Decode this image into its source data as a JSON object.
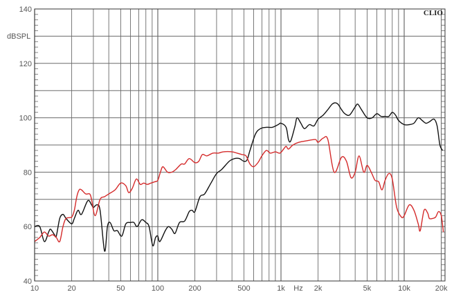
{
  "chart_data": {
    "type": "line",
    "title": "",
    "ylabel": "dBSPL",
    "xlabel": "Hz",
    "brand": "CLIO",
    "x_scale": "log",
    "xlim": [
      10,
      20000
    ],
    "ylim": [
      40,
      140
    ],
    "grid": true,
    "x_ticks": [
      {
        "v": 10,
        "label": "10"
      },
      {
        "v": 20,
        "label": "20"
      },
      {
        "v": 50,
        "label": "50"
      },
      {
        "v": 100,
        "label": "100"
      },
      {
        "v": 200,
        "label": "200"
      },
      {
        "v": 500,
        "label": "500"
      },
      {
        "v": 1000,
        "label": "1k"
      },
      {
        "v": 2000,
        "label": "2k"
      },
      {
        "v": 5000,
        "label": "5k"
      },
      {
        "v": 10000,
        "label": "10k"
      },
      {
        "v": 20000,
        "label": "20k"
      }
    ],
    "y_ticks": [
      40,
      60,
      80,
      100,
      120,
      140
    ],
    "colors": {
      "black_series": "#111111",
      "red_series": "#d42a2a",
      "grid": "#6a6a6a"
    },
    "series": [
      {
        "color": "#111111",
        "points": [
          [
            10,
            60
          ],
          [
            11,
            60
          ],
          [
            12,
            54.5
          ],
          [
            13,
            58
          ],
          [
            13.5,
            59
          ],
          [
            14.5,
            57
          ],
          [
            15,
            56.5
          ],
          [
            16,
            63
          ],
          [
            17,
            64.5
          ],
          [
            18,
            63
          ],
          [
            20,
            61
          ],
          [
            21,
            63
          ],
          [
            22.5,
            66
          ],
          [
            24,
            64.5
          ],
          [
            27,
            69.5
          ],
          [
            29,
            68
          ],
          [
            30,
            67
          ],
          [
            32,
            68
          ],
          [
            34,
            66
          ],
          [
            37,
            51
          ],
          [
            39,
            60
          ],
          [
            41,
            61.5
          ],
          [
            44,
            58.5
          ],
          [
            47,
            58.5
          ],
          [
            51,
            56.5
          ],
          [
            55,
            61
          ],
          [
            60,
            61.5
          ],
          [
            64,
            61.5
          ],
          [
            68,
            60
          ],
          [
            74,
            62.5
          ],
          [
            80,
            61.5
          ],
          [
            85,
            60
          ],
          [
            91,
            53
          ],
          [
            96,
            56
          ],
          [
            100,
            56.5
          ],
          [
            104,
            54.5
          ],
          [
            115,
            58.5
          ],
          [
            122,
            60
          ],
          [
            130,
            59
          ],
          [
            138,
            57.5
          ],
          [
            150,
            61.5
          ],
          [
            165,
            62
          ],
          [
            180,
            65.5
          ],
          [
            190,
            66
          ],
          [
            200,
            65.5
          ],
          [
            220,
            71
          ],
          [
            240,
            72
          ],
          [
            270,
            76
          ],
          [
            300,
            79.5
          ],
          [
            330,
            81
          ],
          [
            380,
            84
          ],
          [
            420,
            85
          ],
          [
            460,
            85
          ],
          [
            500,
            84
          ],
          [
            530,
            84.5
          ],
          [
            560,
            88
          ],
          [
            620,
            94
          ],
          [
            680,
            96
          ],
          [
            760,
            96.5
          ],
          [
            850,
            96.5
          ],
          [
            950,
            97.5
          ],
          [
            1000,
            98
          ],
          [
            1100,
            96.5
          ],
          [
            1150,
            92
          ],
          [
            1200,
            91.5
          ],
          [
            1300,
            97
          ],
          [
            1350,
            100
          ],
          [
            1450,
            98
          ],
          [
            1550,
            96
          ],
          [
            1700,
            97.5
          ],
          [
            1850,
            97
          ],
          [
            2000,
            99.5
          ],
          [
            2200,
            101
          ],
          [
            2400,
            103
          ],
          [
            2600,
            105
          ],
          [
            2750,
            105.5
          ],
          [
            2900,
            105
          ],
          [
            3100,
            103
          ],
          [
            3300,
            101.5
          ],
          [
            3600,
            101
          ],
          [
            4000,
            104
          ],
          [
            4200,
            105
          ],
          [
            4500,
            103
          ],
          [
            5000,
            100
          ],
          [
            5500,
            100
          ],
          [
            6000,
            101.5
          ],
          [
            6500,
            100.5
          ],
          [
            7000,
            100.5
          ],
          [
            7500,
            100.5
          ],
          [
            8000,
            102
          ],
          [
            8500,
            101
          ],
          [
            9000,
            99
          ],
          [
            10000,
            97.5
          ],
          [
            11000,
            97.5
          ],
          [
            12000,
            98
          ],
          [
            13000,
            100
          ],
          [
            14000,
            99
          ],
          [
            15000,
            98
          ],
          [
            16000,
            98.5
          ],
          [
            17500,
            99.5
          ],
          [
            18500,
            97
          ],
          [
            19500,
            90
          ],
          [
            20500,
            88
          ]
        ]
      },
      {
        "color": "#d42a2a",
        "points": [
          [
            10,
            54.5
          ],
          [
            11,
            56
          ],
          [
            12,
            58
          ],
          [
            13,
            56.5
          ],
          [
            14,
            57
          ],
          [
            15,
            56
          ],
          [
            16,
            54.5
          ],
          [
            17,
            60
          ],
          [
            18,
            63
          ],
          [
            20,
            63.5
          ],
          [
            21,
            66
          ],
          [
            22,
            71
          ],
          [
            23,
            73.5
          ],
          [
            24,
            73.5
          ],
          [
            26,
            72
          ],
          [
            28,
            72
          ],
          [
            29,
            70
          ],
          [
            31,
            64
          ],
          [
            34,
            70
          ],
          [
            37,
            71
          ],
          [
            40,
            72
          ],
          [
            45,
            73.5
          ],
          [
            50,
            76
          ],
          [
            55,
            75
          ],
          [
            58,
            72.5
          ],
          [
            62,
            74
          ],
          [
            67,
            77.5
          ],
          [
            72,
            75.5
          ],
          [
            77,
            76
          ],
          [
            82,
            75.5
          ],
          [
            88,
            76
          ],
          [
            95,
            76.5
          ],
          [
            100,
            77
          ],
          [
            105,
            80
          ],
          [
            110,
            82
          ],
          [
            120,
            80
          ],
          [
            130,
            80
          ],
          [
            140,
            81
          ],
          [
            155,
            83
          ],
          [
            165,
            83
          ],
          [
            180,
            85
          ],
          [
            200,
            83.5
          ],
          [
            215,
            84
          ],
          [
            230,
            86.5
          ],
          [
            250,
            86
          ],
          [
            280,
            87
          ],
          [
            310,
            87
          ],
          [
            340,
            87.5
          ],
          [
            400,
            87.5
          ],
          [
            440,
            87
          ],
          [
            480,
            86.5
          ],
          [
            520,
            86
          ],
          [
            560,
            83
          ],
          [
            600,
            82
          ],
          [
            650,
            83.5
          ],
          [
            700,
            86
          ],
          [
            760,
            88
          ],
          [
            820,
            87
          ],
          [
            900,
            87.5
          ],
          [
            980,
            87
          ],
          [
            1050,
            88.5
          ],
          [
            1100,
            89.5
          ],
          [
            1150,
            88.5
          ],
          [
            1250,
            90
          ],
          [
            1400,
            91
          ],
          [
            1600,
            91.5
          ],
          [
            1900,
            92
          ],
          [
            2000,
            91
          ],
          [
            2200,
            92.5
          ],
          [
            2400,
            92
          ],
          [
            2700,
            80
          ],
          [
            3100,
            85.5
          ],
          [
            3400,
            84
          ],
          [
            3700,
            78
          ],
          [
            4000,
            80
          ],
          [
            4300,
            86
          ],
          [
            4700,
            80
          ],
          [
            5000,
            82.5
          ],
          [
            5400,
            80
          ],
          [
            5800,
            77
          ],
          [
            6200,
            76.5
          ],
          [
            6600,
            73.5
          ],
          [
            7000,
            77
          ],
          [
            7500,
            79.5
          ],
          [
            8000,
            77.5
          ],
          [
            8700,
            67
          ],
          [
            9500,
            63.5
          ],
          [
            10000,
            64
          ],
          [
            11000,
            68
          ],
          [
            12000,
            66
          ],
          [
            13000,
            61
          ],
          [
            13500,
            58.5
          ],
          [
            14500,
            66
          ],
          [
            15500,
            65
          ],
          [
            16000,
            63
          ],
          [
            17000,
            63
          ],
          [
            18000,
            63.5
          ],
          [
            19000,
            65.5
          ],
          [
            20000,
            64
          ],
          [
            20800,
            58
          ]
        ]
      }
    ]
  }
}
